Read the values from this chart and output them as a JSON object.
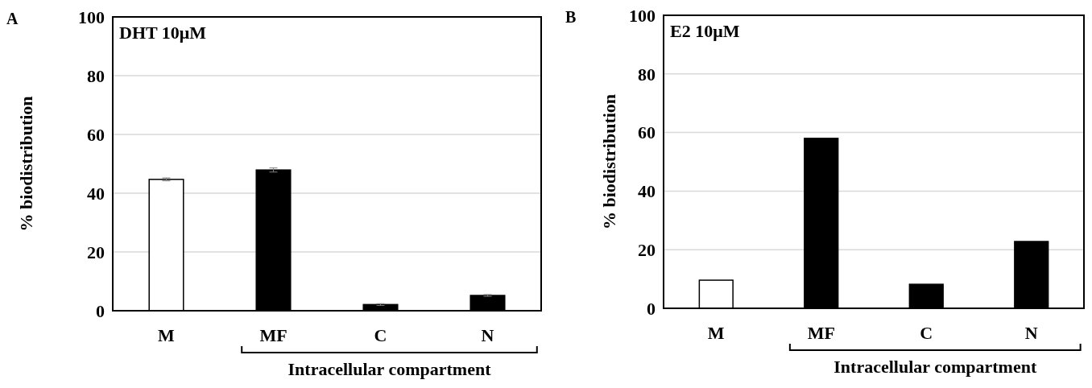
{
  "chart_data": [
    {
      "type": "bar",
      "title": "DHT 10μM",
      "ylabel": "% biodistribution",
      "categories": [
        "M",
        "MF",
        "C",
        "N"
      ],
      "values": [
        44.7,
        47.9,
        2.1,
        5.2
      ],
      "errors": [
        0.5,
        0.7,
        0.3,
        0.3
      ],
      "colors": [
        "#ffffff",
        "#000000",
        "#000000",
        "#000000"
      ],
      "ylim": [
        0,
        100
      ],
      "yticks": [
        0,
        20,
        40,
        60,
        80,
        100
      ],
      "grid": "y",
      "annotations": [
        "A",
        "Intracellular compartment"
      ]
    },
    {
      "type": "bar",
      "title": "E2 10μM",
      "ylabel": "% biodistribution",
      "categories": [
        "M",
        "MF",
        "C",
        "N"
      ],
      "values": [
        9.6,
        58,
        8.2,
        22.8
      ],
      "colors": [
        "#ffffff",
        "#000000",
        "#000000",
        "#000000"
      ],
      "ylim": [
        0,
        100
      ],
      "yticks": [
        0,
        20,
        40,
        60,
        80,
        100
      ],
      "grid": "y",
      "annotations": [
        "B",
        "Intracellular compartment"
      ]
    }
  ]
}
